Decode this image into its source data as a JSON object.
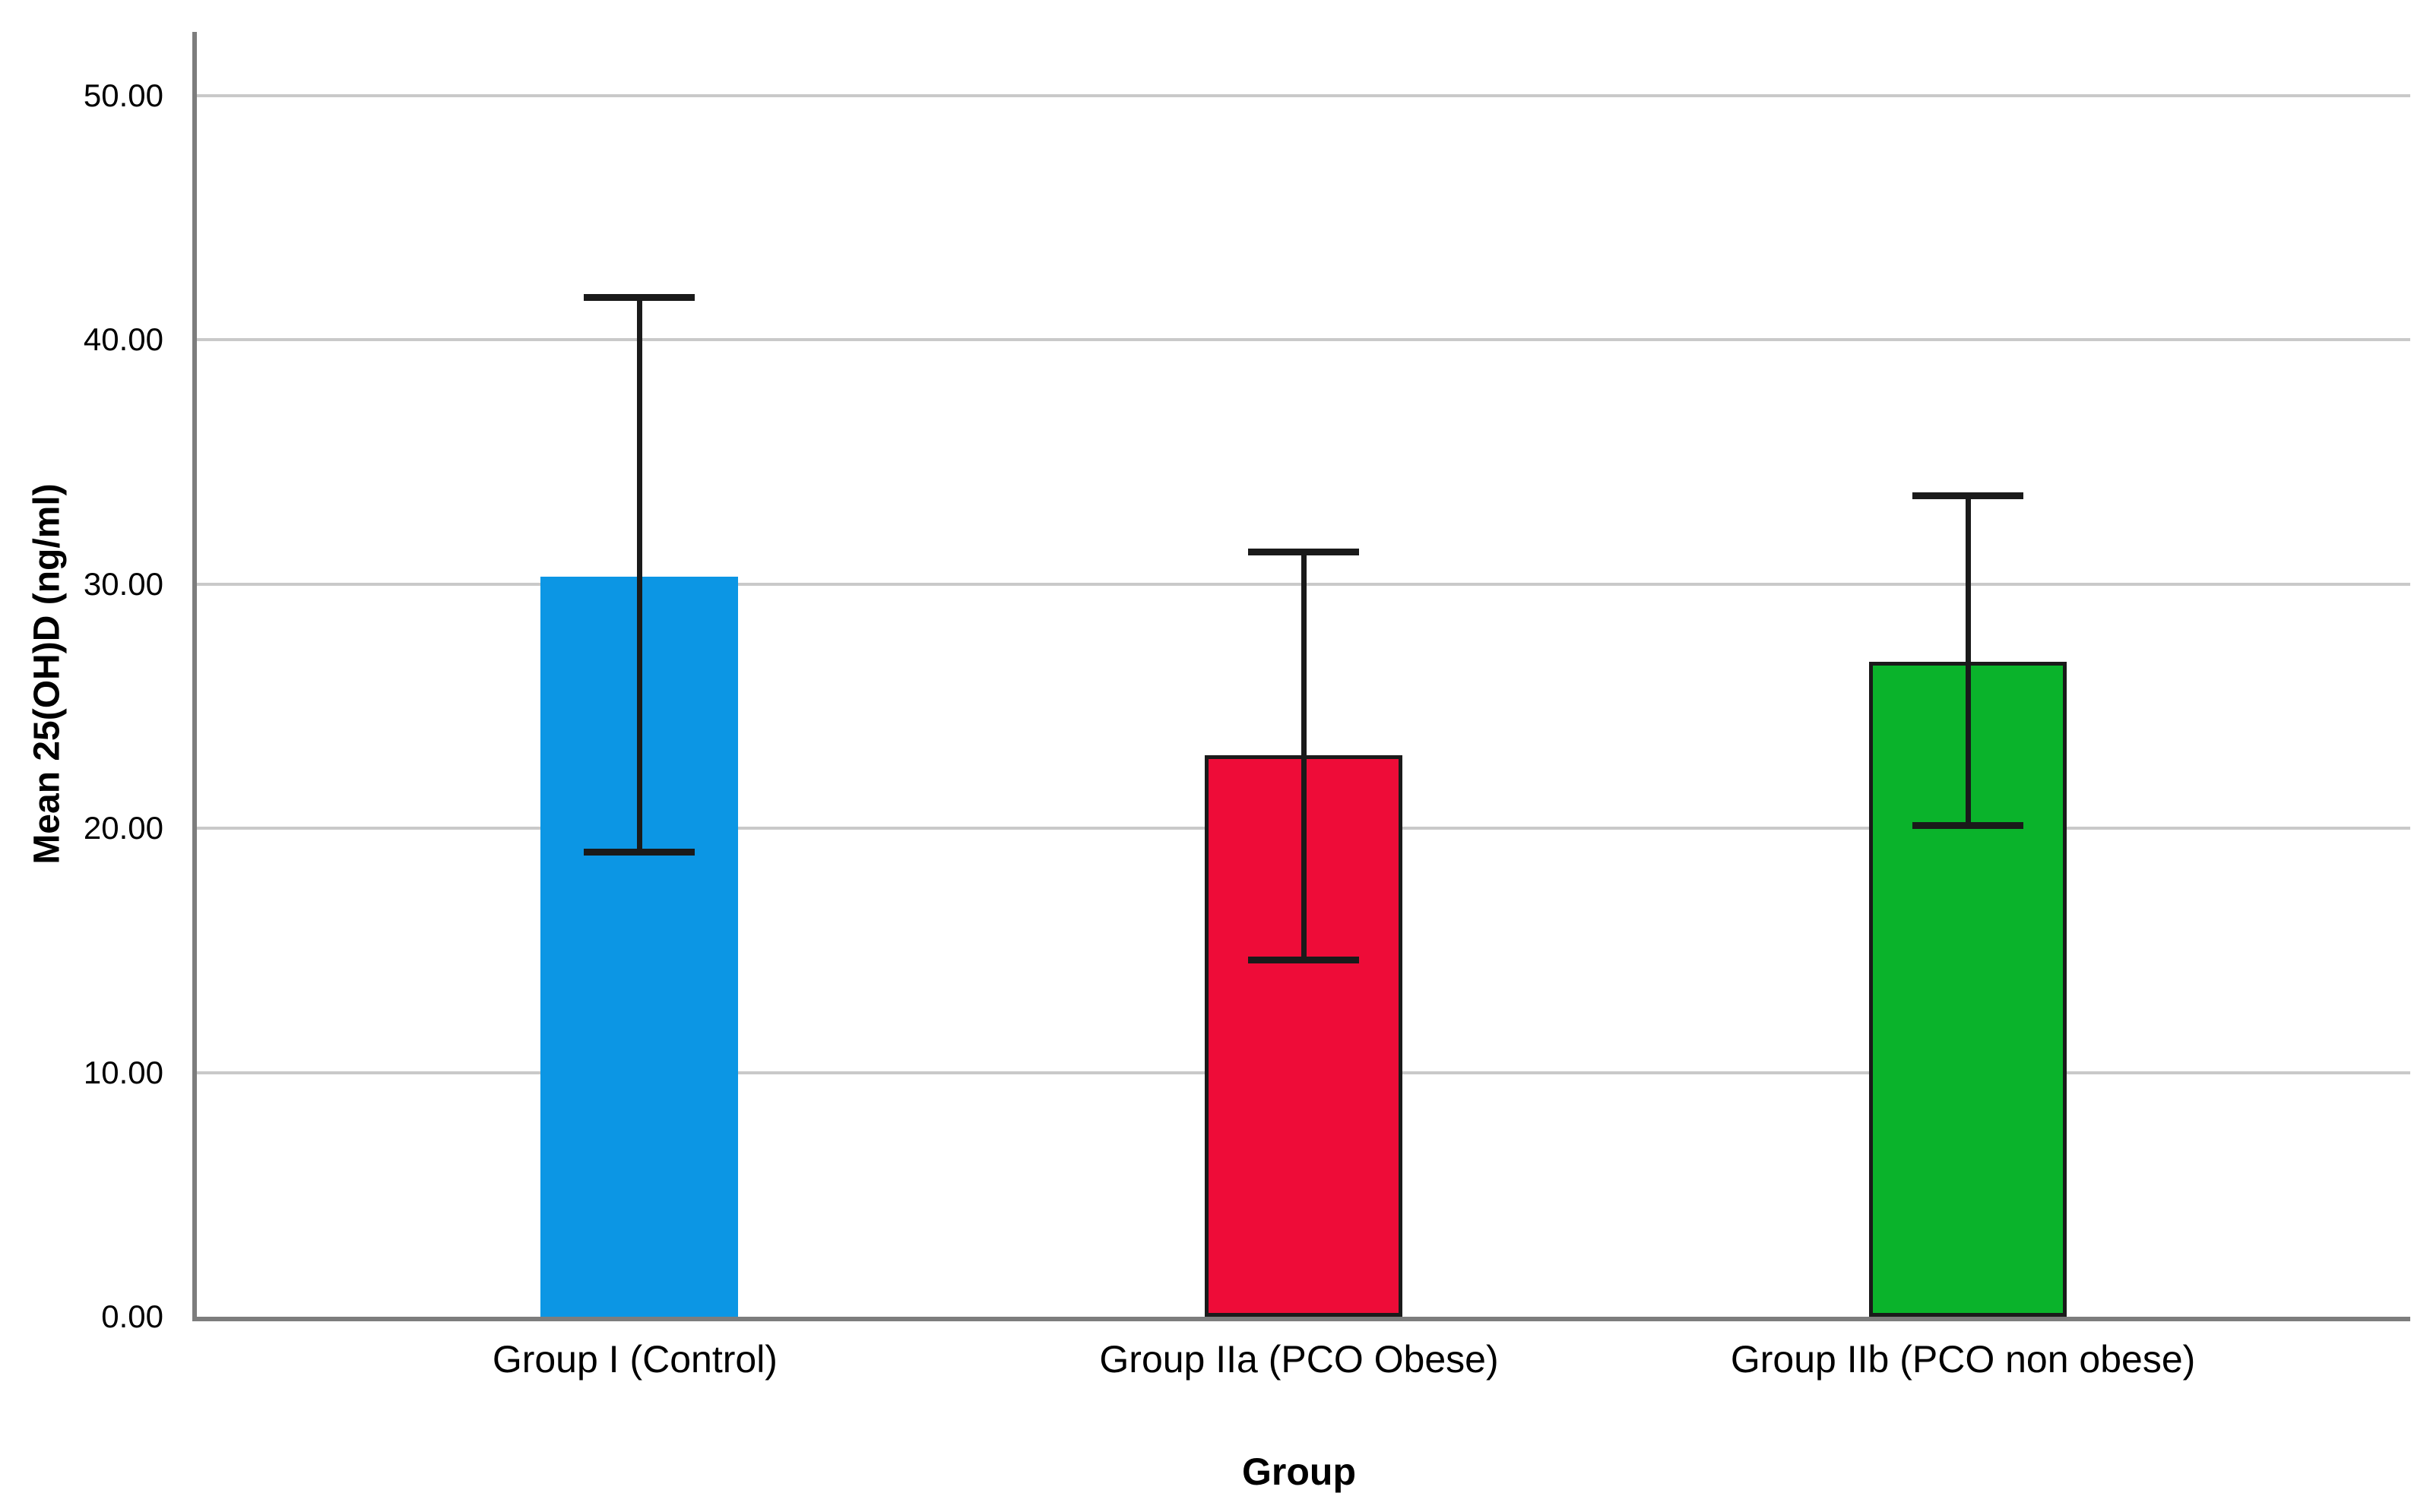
{
  "chart_data": {
    "type": "bar",
    "title": "",
    "xlabel": "Group",
    "ylabel": "Mean 25(OH)D (ng/ml)",
    "categories": [
      "Group I (Control)",
      "Group IIa (PCO Obese)",
      "Group IIb (PCO non obese)"
    ],
    "values": [
      30.3,
      23.0,
      26.8
    ],
    "error_bars": [
      {
        "low": 19.0,
        "high": 41.7
      },
      {
        "low": 14.6,
        "high": 31.3
      },
      {
        "low": 20.1,
        "high": 33.6
      }
    ],
    "bar_colors": [
      "#0C96E4",
      "#EE0C38",
      "#0AB32B"
    ],
    "bar_border_colors": [
      null,
      "#1a1a1a",
      "#1a1a1a"
    ],
    "yticks": [
      0,
      10,
      20,
      30,
      40,
      50
    ],
    "ytick_labels": [
      "0.00",
      "10.00",
      "20.00",
      "30.00",
      "40.00",
      "50.00"
    ],
    "ylim": [
      0,
      52.6
    ],
    "grid": true,
    "legend_position": "none"
  },
  "colors": {
    "background": "#FFFFFF",
    "gridline": "#C9C9C9",
    "axis": "#7D7D7D",
    "error_bar": "#1A1A1A",
    "text": "#000000"
  }
}
